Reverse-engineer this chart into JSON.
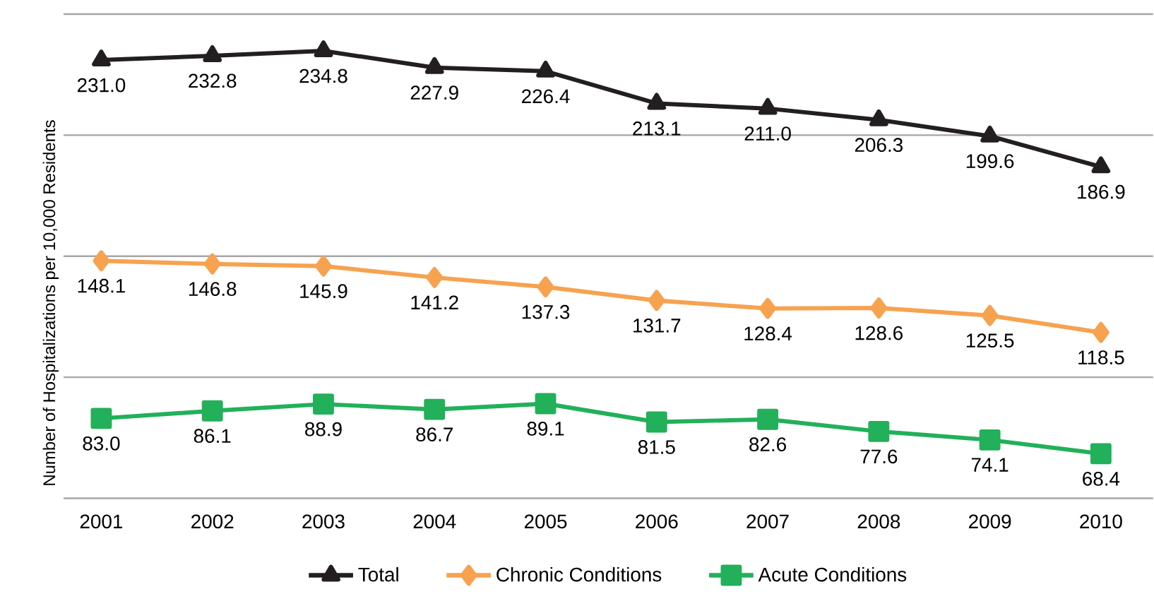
{
  "chart_data": {
    "type": "line",
    "ylabel": "Number of Hospitalizations per 10,000 Residents",
    "categories": [
      "2001",
      "2002",
      "2003",
      "2004",
      "2005",
      "2006",
      "2007",
      "2008",
      "2009",
      "2010"
    ],
    "series": [
      {
        "name": "Total",
        "color": "#231f20",
        "marker": "triangle",
        "values": [
          231.0,
          232.8,
          234.8,
          227.9,
          226.4,
          213.1,
          211.0,
          206.3,
          199.6,
          186.9
        ],
        "value_labels": [
          "231.0",
          "232.8",
          "234.8",
          "227.9",
          "226.4",
          "213.1",
          "211.0",
          "206.3",
          "199.6",
          "186.9"
        ]
      },
      {
        "name": "Chronic Conditions",
        "color": "#f7a24f",
        "marker": "diamond",
        "values": [
          148.1,
          146.8,
          145.9,
          141.2,
          137.3,
          131.7,
          128.4,
          128.6,
          125.5,
          118.5
        ],
        "value_labels": [
          "148.1",
          "146.8",
          "145.9",
          "141.2",
          "137.3",
          "131.7",
          "128.4",
          "128.6",
          "125.5",
          "118.5"
        ]
      },
      {
        "name": "Acute Conditions",
        "color": "#22b05a",
        "marker": "square",
        "values": [
          83.0,
          86.1,
          88.9,
          86.7,
          89.1,
          81.5,
          82.6,
          77.6,
          74.1,
          68.4
        ],
        "value_labels": [
          "83.0",
          "86.1",
          "88.9",
          "86.7",
          "89.1",
          "81.5",
          "82.6",
          "77.6",
          "74.1",
          "68.4"
        ]
      }
    ],
    "ylim": [
      50,
      250
    ],
    "yticks": [
      {
        "value": 50,
        "label": null
      },
      {
        "value": 100,
        "label": null
      },
      {
        "value": 150,
        "label": null
      },
      {
        "value": 200,
        "label": null
      },
      {
        "value": 250,
        "label": null
      }
    ],
    "tick_labels": "x",
    "grid": "y",
    "legend": "bottom",
    "line_style": "solid"
  }
}
